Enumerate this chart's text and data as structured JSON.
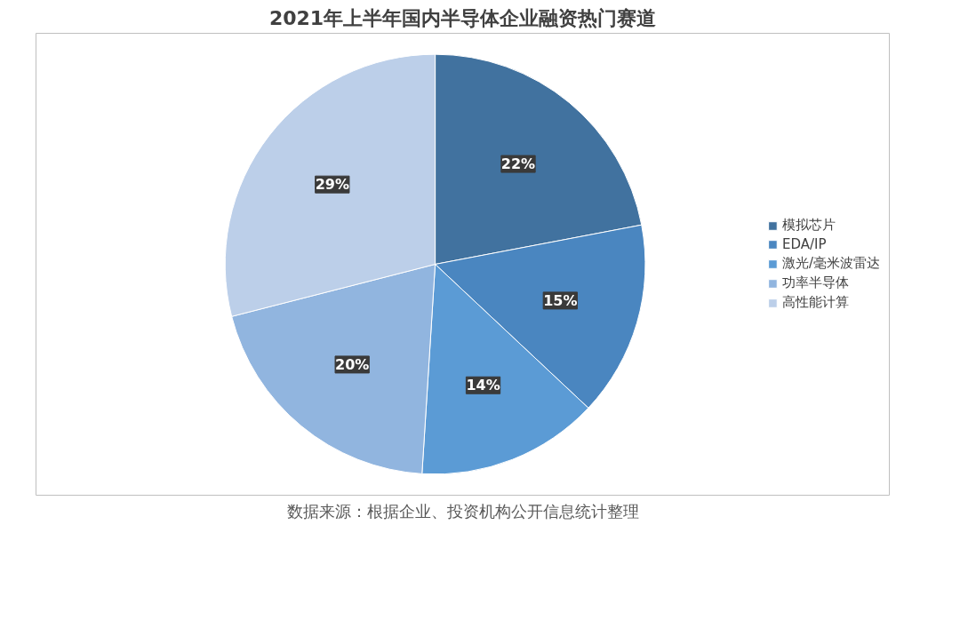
{
  "chart_data": {
    "type": "pie",
    "title": "2021年上半年国内半导体企业融资热门赛道",
    "categories": [
      "模拟芯片",
      "EDA/IP",
      "激光/毫米波雷达",
      "功率半导体",
      "高性能计算"
    ],
    "values": [
      22,
      15,
      14,
      20,
      29
    ],
    "colors": [
      "#41729f",
      "#4a86c0",
      "#5b9bd5",
      "#91b5df",
      "#bccfe9"
    ],
    "value_labels": [
      "22%",
      "15%",
      "14%",
      "20%",
      "29%"
    ],
    "legend": "right",
    "annotations": [
      "数据来源：根据企业、投资机构公开信息统计整理"
    ]
  }
}
